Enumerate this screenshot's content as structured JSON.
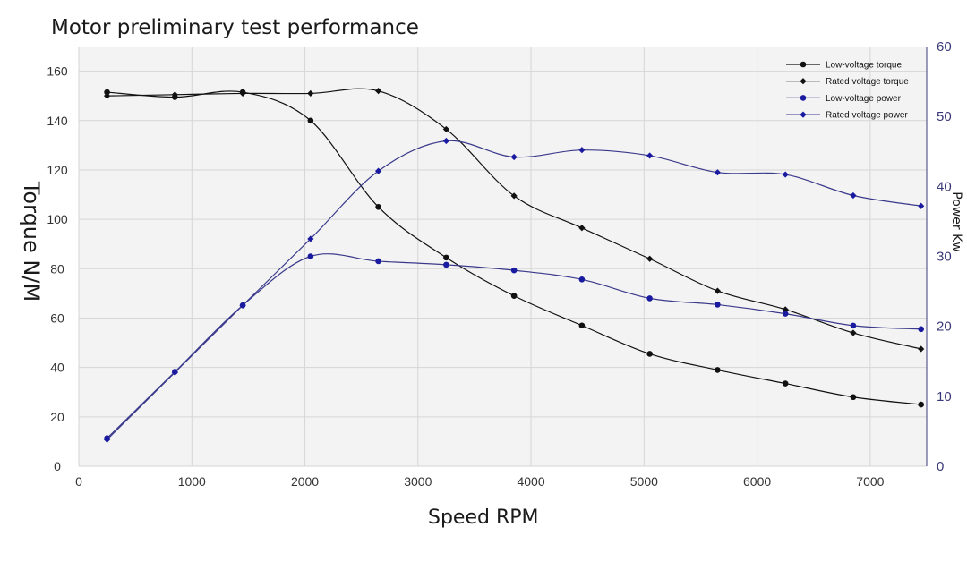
{
  "chart_data": {
    "type": "line",
    "title": "Motor preliminary test performance",
    "xlabel": "Speed RPM",
    "ylabel_left": "Torque N/M",
    "ylabel_right": "Power Kw",
    "xlim": [
      0,
      7500
    ],
    "ylim_left": [
      0,
      170
    ],
    "ylim_right": [
      0,
      60
    ],
    "xticks": [
      0,
      1000,
      2000,
      3000,
      4000,
      5000,
      6000,
      7000
    ],
    "yticks_left": [
      0,
      20,
      40,
      60,
      80,
      100,
      120,
      140,
      160
    ],
    "yticks_right": [
      0,
      10,
      20,
      30,
      40,
      50,
      60
    ],
    "grid": true,
    "legend_position": "top-right",
    "x": [
      250,
      850,
      1450,
      2050,
      2650,
      3250,
      3850,
      4450,
      5050,
      5650,
      6250,
      6850,
      7450
    ],
    "series": [
      {
        "name": "Low-voltage torque",
        "axis": "left",
        "marker": "circle",
        "color": "#111111",
        "values": [
          151.5,
          149.5,
          151.5,
          140,
          105,
          84.5,
          69,
          57,
          45.5,
          39,
          33.5,
          28,
          25
        ]
      },
      {
        "name": "Rated voltage torque",
        "axis": "left",
        "marker": "diamond",
        "color": "#111111",
        "values": [
          150,
          150.5,
          151,
          151,
          152,
          136.5,
          109.5,
          96.5,
          84,
          71,
          63.5,
          54,
          47.5
        ]
      },
      {
        "name": "Low-voltage power",
        "axis": "right",
        "marker": "circle",
        "color": "#3a3a8c",
        "values": [
          4,
          13.5,
          23,
          30,
          29.3,
          28.8,
          28,
          26.7,
          24,
          23.1,
          21.8,
          20.1,
          19.6
        ]
      },
      {
        "name": "Rated voltage power",
        "axis": "right",
        "marker": "diamond",
        "color": "#3a3a8c",
        "values": [
          3.8,
          13.4,
          23,
          32.5,
          42.2,
          46.5,
          44.2,
          45.2,
          44.4,
          42,
          41.7,
          38.7,
          37.2
        ]
      }
    ]
  }
}
